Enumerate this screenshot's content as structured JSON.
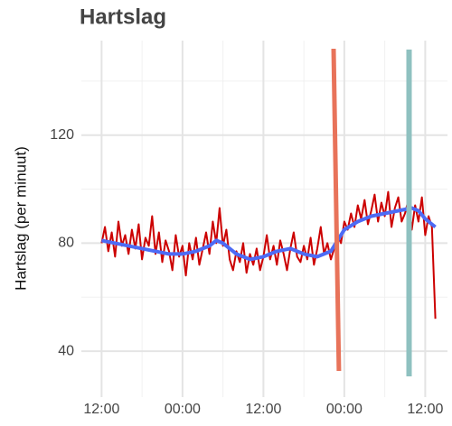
{
  "chart_data": {
    "type": "line",
    "title": "Hartslag",
    "y_label": "Hartslag (per minuut)",
    "xlim": [
      -3,
      51.3
    ],
    "ylim": [
      23,
      155
    ],
    "xticks": [
      {
        "value": 0,
        "label": "12:00"
      },
      {
        "value": 12,
        "label": "00:00"
      },
      {
        "value": 24,
        "label": "12:00"
      },
      {
        "value": 36,
        "label": "00:00"
      },
      {
        "value": 48,
        "label": "12:00"
      }
    ],
    "yticks": [
      40,
      80,
      120
    ],
    "grid": true,
    "series": [
      {
        "color": "#cc0000",
        "width": 2,
        "x": [
          0,
          0.5,
          1,
          1.5,
          2,
          2.5,
          3,
          3.5,
          4,
          4.5,
          5,
          5.5,
          6,
          6.5,
          7,
          7.5,
          8,
          8.5,
          9,
          9.5,
          10,
          10.5,
          11,
          11.5,
          12,
          12.5,
          13,
          13.5,
          14,
          14.5,
          15,
          15.5,
          16,
          16.5,
          17,
          17.5,
          18,
          18.5,
          19,
          19.5,
          20,
          20.5,
          21,
          21.5,
          22,
          22.5,
          23,
          23.5,
          24,
          24.5,
          25,
          25.5,
          26,
          26.5,
          27,
          27.5,
          28,
          28.5,
          29,
          29.5,
          30,
          30.5,
          31,
          31.5,
          32,
          32.5,
          33,
          33.5,
          34,
          34.5,
          35,
          35.5,
          36,
          36.5,
          37,
          37.5,
          38,
          38.5,
          39,
          39.5,
          40,
          40.5,
          41,
          41.5,
          42,
          42.5,
          43,
          43.5,
          44,
          44.5,
          45,
          45.5,
          46,
          46.5,
          47,
          47.5,
          48,
          48.5,
          49,
          49.5
        ],
        "values": [
          80,
          86,
          77,
          84,
          75,
          88,
          79,
          83,
          76,
          85,
          78,
          87,
          74,
          82,
          79,
          90,
          76,
          84,
          73,
          81,
          77,
          70,
          83,
          75,
          79,
          68,
          80,
          74,
          82,
          72,
          78,
          84,
          76,
          88,
          80,
          93,
          79,
          85,
          74,
          70,
          77,
          73,
          80,
          69,
          76,
          72,
          78,
          70,
          75,
          83,
          74,
          79,
          72,
          81,
          76,
          70,
          78,
          84,
          75,
          73,
          79,
          74,
          82,
          72,
          78,
          86,
          76,
          80,
          74,
          78,
          83,
          80,
          88,
          85,
          91,
          86,
          94,
          89,
          96,
          87,
          92,
          98,
          88,
          95,
          90,
          99,
          86,
          93,
          97,
          88,
          91,
          96,
          85,
          94,
          88,
          97,
          83,
          90,
          86,
          52
        ]
      },
      {
        "color": "#4d6bf5",
        "width": 4,
        "x": [
          0,
          2,
          4,
          6,
          8,
          10,
          12,
          14,
          16,
          17,
          18,
          20,
          22,
          24,
          26,
          28,
          30,
          32,
          34,
          35,
          36,
          38,
          40,
          42,
          44,
          46,
          47,
          48,
          49.5
        ],
        "values": [
          81,
          80,
          79,
          78,
          77,
          76,
          76,
          77,
          79,
          81,
          80,
          76,
          74,
          75,
          77,
          78,
          76,
          75,
          77,
          81,
          85,
          88,
          90,
          91,
          92,
          93,
          92,
          89,
          86
        ]
      },
      {
        "color": "#e8735a",
        "width": 5,
        "x": [
          34.4,
          35.2
        ],
        "values": [
          152,
          32.7
        ]
      },
      {
        "color": "#8fc1c0",
        "width": 6,
        "x": [
          45.6,
          45.6
        ],
        "values": [
          151.7,
          30.7
        ]
      }
    ]
  }
}
